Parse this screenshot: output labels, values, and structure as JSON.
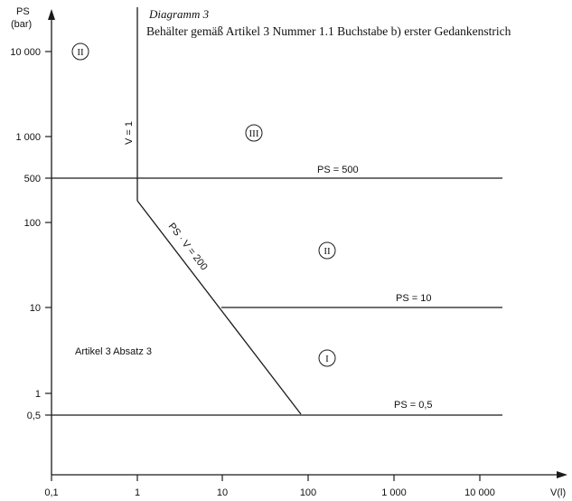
{
  "title": {
    "line1": "Diagramm 3",
    "line2": "Behälter gemäß Artikel 3 Nummer 1.1 Buchstabe b) erster Gedankenstrich"
  },
  "axes": {
    "y_title": "PS",
    "y_unit": "(bar)",
    "x_title": "V(l)",
    "x_ticks": [
      "0,1",
      "1",
      "10",
      "100",
      "1 000",
      "10 000"
    ],
    "y_ticks": [
      "10 000",
      "1 000",
      "500",
      "100",
      "10",
      "1",
      "0,5"
    ]
  },
  "boundary_labels": {
    "v_eq_1": "V = 1",
    "ps_500": "PS = 500",
    "psv_200": "PS · V = 200",
    "ps_10": "PS = 10",
    "ps_05": "PS = 0,5"
  },
  "region_labels": {
    "art3": "Artikel 3 Absatz 3"
  },
  "categories": {
    "top_left": "II",
    "top_right": "III",
    "middle": "II",
    "bottom": "I"
  }
}
